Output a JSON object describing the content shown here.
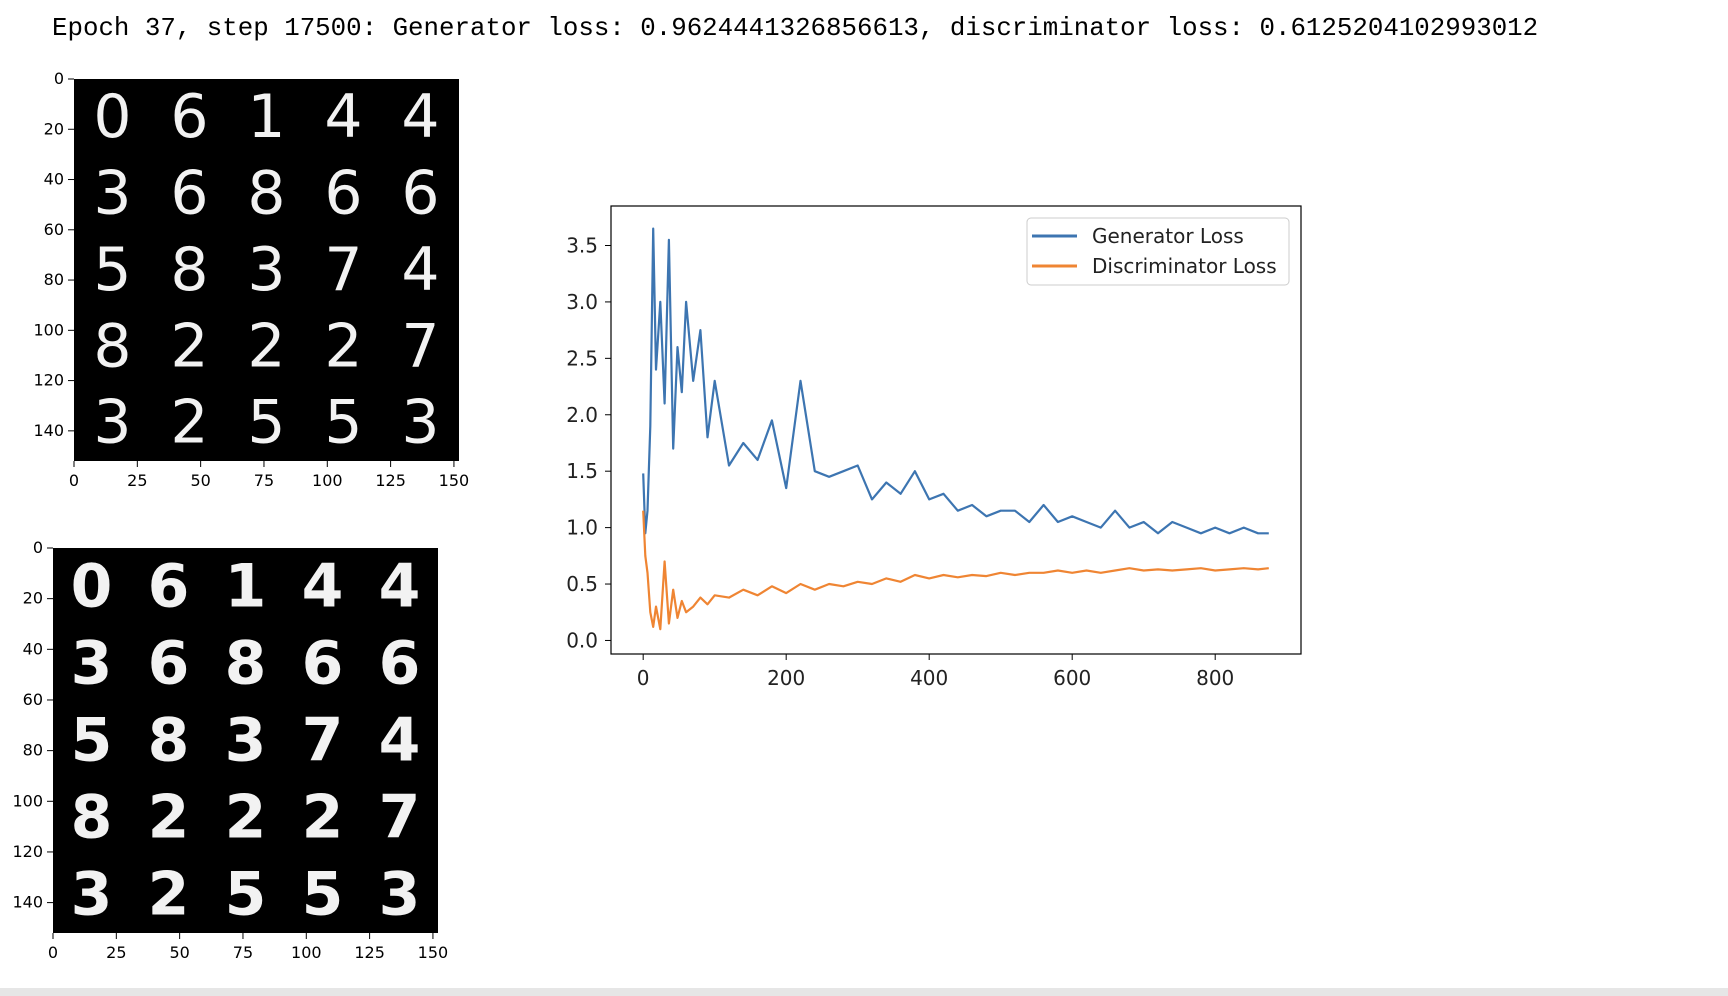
{
  "output": {
    "log_line": "Epoch 37, step 17500: Generator loss: 0.9624441326856613, discriminator loss: 0.6125204102993012"
  },
  "grids": [
    {
      "name": "generated-samples",
      "digits": [
        [
          "0",
          "6",
          "1",
          "4",
          "4"
        ],
        [
          "3",
          "6",
          "8",
          "6",
          "6"
        ],
        [
          "5",
          "8",
          "3",
          "7",
          "4"
        ],
        [
          "8",
          "2",
          "2",
          "2",
          "7"
        ],
        [
          "3",
          "2",
          "5",
          "5",
          "3"
        ]
      ],
      "x_ticks": [
        "0",
        "25",
        "50",
        "75",
        "100",
        "125",
        "150"
      ],
      "y_ticks": [
        "0",
        "20",
        "40",
        "60",
        "80",
        "100",
        "120",
        "140"
      ]
    },
    {
      "name": "real-samples",
      "digits": [
        [
          "0",
          "6",
          "1",
          "4",
          "4"
        ],
        [
          "3",
          "6",
          "8",
          "6",
          "6"
        ],
        [
          "5",
          "8",
          "3",
          "7",
          "4"
        ],
        [
          "8",
          "2",
          "2",
          "2",
          "7"
        ],
        [
          "3",
          "2",
          "5",
          "5",
          "3"
        ]
      ],
      "x_ticks": [
        "0",
        "25",
        "50",
        "75",
        "100",
        "125",
        "150"
      ],
      "y_ticks": [
        "0",
        "20",
        "40",
        "60",
        "80",
        "100",
        "120",
        "140"
      ]
    }
  ],
  "chart_data": {
    "type": "line",
    "x_range": [
      0,
      875
    ],
    "xlim": [
      -45,
      920
    ],
    "ylim": [
      -0.12,
      3.85
    ],
    "x_ticks": [
      "0",
      "200",
      "400",
      "600",
      "800"
    ],
    "y_ticks": [
      "0.0",
      "0.5",
      "1.0",
      "1.5",
      "2.0",
      "2.5",
      "3.0",
      "3.5"
    ],
    "grid": false,
    "legend_position": "top-right",
    "series": [
      {
        "name": "Generator Loss",
        "color": "#3d75b1",
        "x": [
          0,
          3,
          6,
          10,
          14,
          18,
          24,
          30,
          36,
          42,
          48,
          54,
          60,
          70,
          80,
          90,
          100,
          120,
          140,
          160,
          180,
          200,
          220,
          240,
          260,
          280,
          300,
          320,
          340,
          360,
          380,
          400,
          420,
          440,
          460,
          480,
          500,
          520,
          540,
          560,
          580,
          600,
          620,
          640,
          660,
          680,
          700,
          720,
          740,
          760,
          780,
          800,
          820,
          840,
          860,
          875
        ],
        "values": [
          1.48,
          0.95,
          1.15,
          1.9,
          3.65,
          2.4,
          3.0,
          2.1,
          3.55,
          1.7,
          2.6,
          2.2,
          3.0,
          2.3,
          2.75,
          1.8,
          2.3,
          1.55,
          1.75,
          1.6,
          1.95,
          1.35,
          2.3,
          1.5,
          1.45,
          1.5,
          1.55,
          1.25,
          1.4,
          1.3,
          1.5,
          1.25,
          1.3,
          1.15,
          1.2,
          1.1,
          1.15,
          1.15,
          1.05,
          1.2,
          1.05,
          1.1,
          1.05,
          1.0,
          1.15,
          1.0,
          1.05,
          0.95,
          1.05,
          1.0,
          0.95,
          1.0,
          0.95,
          1.0,
          0.95,
          0.95
        ]
      },
      {
        "name": "Discriminator Loss",
        "color": "#ef8533",
        "x": [
          0,
          3,
          6,
          10,
          14,
          18,
          24,
          30,
          36,
          42,
          48,
          54,
          60,
          70,
          80,
          90,
          100,
          120,
          140,
          160,
          180,
          200,
          220,
          240,
          260,
          280,
          300,
          320,
          340,
          360,
          380,
          400,
          420,
          440,
          460,
          480,
          500,
          520,
          540,
          560,
          580,
          600,
          620,
          640,
          660,
          680,
          700,
          720,
          740,
          760,
          780,
          800,
          820,
          840,
          860,
          875
        ],
        "values": [
          1.15,
          0.75,
          0.6,
          0.25,
          0.12,
          0.3,
          0.1,
          0.7,
          0.15,
          0.45,
          0.2,
          0.35,
          0.25,
          0.3,
          0.38,
          0.32,
          0.4,
          0.38,
          0.45,
          0.4,
          0.48,
          0.42,
          0.5,
          0.45,
          0.5,
          0.48,
          0.52,
          0.5,
          0.55,
          0.52,
          0.58,
          0.55,
          0.58,
          0.56,
          0.58,
          0.57,
          0.6,
          0.58,
          0.6,
          0.6,
          0.62,
          0.6,
          0.62,
          0.6,
          0.62,
          0.64,
          0.62,
          0.63,
          0.62,
          0.63,
          0.64,
          0.62,
          0.63,
          0.64,
          0.63,
          0.64
        ]
      }
    ]
  }
}
